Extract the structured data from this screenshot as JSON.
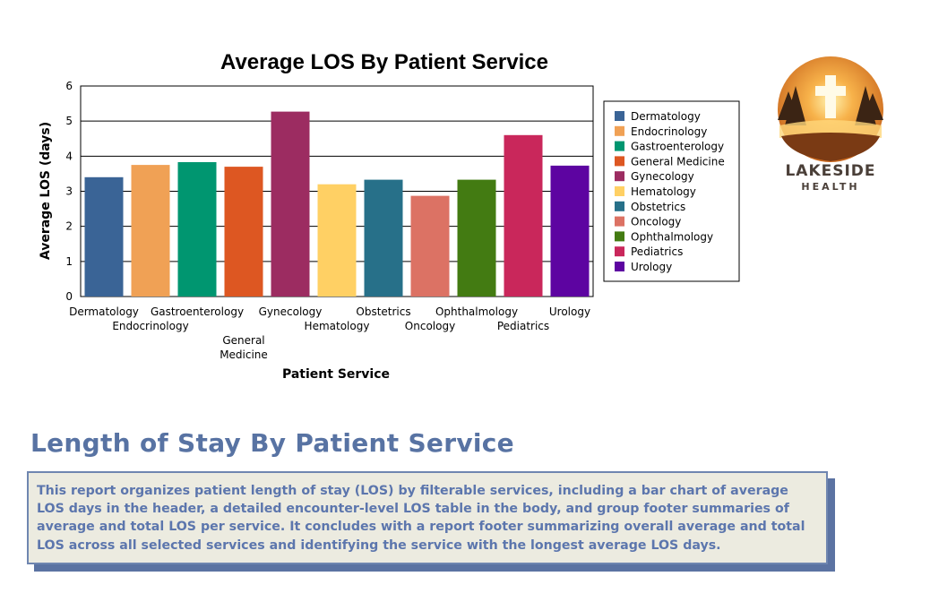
{
  "chart_data": {
    "type": "bar",
    "title": "Average LOS By Patient Service",
    "xlabel": "Patient Service",
    "ylabel": "Average LOS (days)",
    "ylim": [
      0,
      6
    ],
    "yticks": [
      0,
      1,
      2,
      3,
      4,
      5,
      6
    ],
    "grid": true,
    "legend_position": "right",
    "categories": [
      "Dermatology",
      "Endocrinology",
      "Gastroenterology",
      "General Medicine",
      "Gynecology",
      "Hematology",
      "Obstetrics",
      "Oncology",
      "Ophthalmology",
      "Pediatrics",
      "Urology"
    ],
    "values": [
      3.4,
      3.75,
      3.83,
      3.7,
      5.27,
      3.2,
      3.33,
      2.87,
      3.33,
      4.6,
      3.73
    ],
    "colors": [
      "#3a6496",
      "#f0a155",
      "#009670",
      "#dd5722",
      "#9c2c61",
      "#ffd064",
      "#277089",
      "#dc7264",
      "#437b12",
      "#c9275b",
      "#5d04a1"
    ]
  },
  "logo": {
    "text": "LAKESIDE",
    "subtext": "HEALTH",
    "icon": "cross-lake-forest-icon"
  },
  "report": {
    "title": "Length of Stay By Patient Service",
    "description": "This report organizes patient length of stay (LOS) by filterable services, including a bar chart of average LOS days in the header, a detailed encounter-level LOS table in the body, and group footer summaries of average and total LOS per service. It concludes with a report footer summarizing overall average and total LOS across all selected services and identifying the service with the longest average LOS days."
  }
}
